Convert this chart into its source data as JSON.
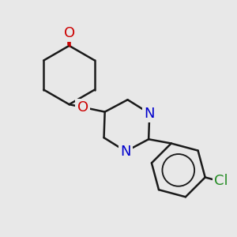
{
  "bg_color": "#e8e8e8",
  "bond_color": "#1a1a1a",
  "N_color": "#0000cc",
  "O_color": "#cc0000",
  "Cl_color": "#228B22",
  "bond_width": 1.8,
  "font_size": 13,
  "figsize": [
    3.0,
    3.0
  ],
  "dpi": 100,
  "xlim": [
    0.0,
    10.0
  ],
  "ylim": [
    1.0,
    10.5
  ]
}
